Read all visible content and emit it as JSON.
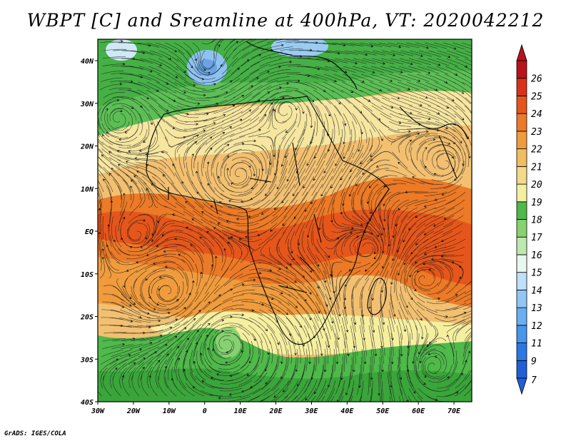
{
  "title": "WBPT [C] and Sreamline at 400hPa, VT: 2020042212",
  "credit": "GrADS: IGES/COLA",
  "map": {
    "lon_labels": [
      "30W",
      "20W",
      "10W",
      "0",
      "10E",
      "20E",
      "30E",
      "40E",
      "50E",
      "60E",
      "70E"
    ],
    "lat_labels": [
      "40N",
      "30N",
      "20N",
      "10N",
      "EQ",
      "10S",
      "20S",
      "30S",
      "40S"
    ]
  },
  "colorbar": {
    "labels": [
      "7",
      "9",
      "11",
      "12",
      "13",
      "14",
      "15",
      "16",
      "17",
      "18",
      "19",
      "20",
      "21",
      "22",
      "23",
      "24",
      "25",
      "26"
    ],
    "colors": [
      "#1f5fd8",
      "#2b78e4",
      "#4596ec",
      "#6aaff2",
      "#92c6f6",
      "#bfdffa",
      "#e8f7f0",
      "#bfe8b0",
      "#86d271",
      "#4fb94a",
      "#f6efa0",
      "#f4d98a",
      "#f2bd62",
      "#f09c3d",
      "#ec7a27",
      "#e6561b",
      "#d8321b",
      "#b8121b"
    ]
  }
}
